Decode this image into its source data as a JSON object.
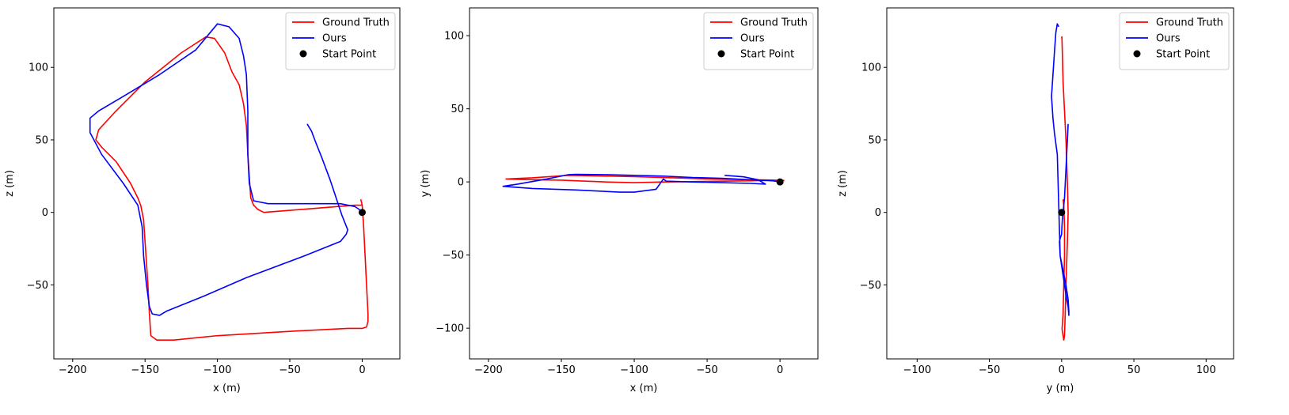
{
  "figure": {
    "background": "#ffffff"
  },
  "chart_data": [
    {
      "type": "line",
      "xlabel": "x (m)",
      "ylabel": "z (m)",
      "xlim": [
        -213,
        26
      ],
      "ylim": [
        -101,
        141
      ],
      "xticks": [
        -200,
        -150,
        -100,
        -50,
        0
      ],
      "yticks": [
        -50,
        0,
        50,
        100
      ],
      "xtick_labels": [
        "−200",
        "−150",
        "−100",
        "−50",
        "0"
      ],
      "ytick_labels": [
        "−50",
        "0",
        "50",
        "100"
      ],
      "grid": false,
      "legend_position": "top-right",
      "legend": [
        {
          "label": "Ground Truth",
          "kind": "line",
          "color": "#ff0000"
        },
        {
          "label": "Ours",
          "kind": "line",
          "color": "#0000ff"
        },
        {
          "label": "Start Point",
          "kind": "marker",
          "color": "#000000"
        }
      ],
      "series": [
        {
          "name": "Ground Truth",
          "color": "#ff0000",
          "x": [
            -1,
            0,
            1,
            2,
            3,
            4,
            4,
            3,
            0,
            -10,
            -50,
            -100,
            -130,
            -142,
            -146,
            -147,
            -148,
            -150,
            -151,
            -152,
            -153,
            -155,
            -160,
            -170,
            -180,
            -184,
            -182,
            -170,
            -150,
            -125,
            -108,
            -102,
            -95,
            -90,
            -85,
            -82,
            -80,
            -79,
            -78,
            -77,
            -75,
            -72,
            -68,
            -55,
            -30,
            -5,
            0
          ],
          "z": [
            9,
            5,
            -10,
            -30,
            -50,
            -70,
            -75,
            -79,
            -80,
            -80,
            -82,
            -85,
            -88,
            -88,
            -85,
            -70,
            -50,
            -20,
            -5,
            0,
            5,
            10,
            20,
            35,
            45,
            50,
            57,
            70,
            90,
            110,
            121,
            120,
            110,
            97,
            88,
            75,
            60,
            40,
            25,
            10,
            5,
            2,
            0,
            1,
            3,
            5,
            5
          ]
        },
        {
          "name": "Ours",
          "color": "#0000ff",
          "x": [
            -38,
            -35,
            -32,
            -28,
            -22,
            -18,
            -14,
            -12,
            -10,
            -11,
            -15,
            -40,
            -80,
            -110,
            -135,
            -140,
            -145,
            -147,
            -149,
            -151,
            -152,
            -155,
            -165,
            -180,
            -188,
            -188,
            -182,
            -165,
            -140,
            -115,
            -105,
            -100,
            -92,
            -85,
            -82,
            -80,
            -79,
            -79,
            -78,
            -75,
            -65,
            -40,
            -15,
            -5,
            -2,
            0
          ],
          "z": [
            61,
            56,
            48,
            38,
            22,
            10,
            -2,
            -7,
            -12,
            -15,
            -20,
            -30,
            -45,
            -58,
            -68,
            -71,
            -70,
            -65,
            -50,
            -30,
            -10,
            5,
            20,
            40,
            55,
            65,
            70,
            80,
            95,
            112,
            124,
            130,
            128,
            120,
            108,
            95,
            70,
            40,
            20,
            8,
            6,
            6,
            6,
            4,
            2,
            0
          ]
        },
        {
          "name": "Start Point",
          "color": "#000000",
          "marker": "circle",
          "x": [
            0
          ],
          "z": [
            0
          ]
        }
      ]
    },
    {
      "type": "line",
      "xlabel": "x (m)",
      "ylabel": "y (m)",
      "xlim": [
        -213,
        26
      ],
      "ylim": [
        -121,
        119
      ],
      "xticks": [
        -200,
        -150,
        -100,
        -50,
        0
      ],
      "yticks": [
        -100,
        -50,
        0,
        50,
        100
      ],
      "xtick_labels": [
        "−200",
        "−150",
        "−100",
        "−50",
        "0"
      ],
      "ytick_labels": [
        "−100",
        "−50",
        "0",
        "50",
        "100"
      ],
      "grid": false,
      "legend_position": "top-right",
      "legend": [
        {
          "label": "Ground Truth",
          "kind": "line",
          "color": "#ff0000"
        },
        {
          "label": "Ours",
          "kind": "line",
          "color": "#0000ff"
        },
        {
          "label": "Start Point",
          "kind": "marker",
          "color": "#000000"
        }
      ],
      "series": [
        {
          "name": "Ground Truth",
          "color": "#ff0000",
          "x": [
            3,
            -5,
            -20,
            -40,
            -60,
            -80,
            -100,
            -120,
            -145,
            -150,
            -160,
            -170,
            -188,
            -175,
            -150,
            -140,
            -120,
            -100,
            -80,
            -60,
            -40,
            -20,
            -10,
            0
          ],
          "y": [
            1,
            1.3,
            1.5,
            1.8,
            2.4,
            3,
            3.6,
            4,
            4.5,
            4.2,
            3.5,
            2.8,
            2,
            1.6,
            1.2,
            0.8,
            0,
            -0.5,
            0,
            0.2,
            0.5,
            0.8,
            1,
            1
          ]
        },
        {
          "name": "Ours",
          "color": "#0000ff",
          "x": [
            -38,
            -25,
            -15,
            -10,
            -20,
            -40,
            -60,
            -78,
            -80,
            -85,
            -100,
            -110,
            -140,
            -170,
            -190,
            -180,
            -160,
            -145,
            -140,
            -120,
            -100,
            -80,
            -60,
            -40,
            -20,
            -5,
            0
          ],
          "y": [
            4.5,
            3.5,
            1.5,
            -1.5,
            -1,
            -0.5,
            0,
            0.5,
            2,
            -5,
            -7,
            -7,
            -5.5,
            -4.5,
            -3,
            -1.5,
            2,
            5,
            5.2,
            5,
            4.5,
            4,
            3,
            2.5,
            1.5,
            0.8,
            0
          ]
        },
        {
          "name": "Start Point",
          "color": "#000000",
          "marker": "circle",
          "x": [
            0
          ],
          "y": [
            0
          ]
        }
      ]
    },
    {
      "type": "line",
      "xlabel": "y (m)",
      "ylabel": "z (m)",
      "xlim": [
        -121,
        119
      ],
      "ylim": [
        -101,
        141
      ],
      "xticks": [
        -100,
        -50,
        0,
        50,
        100
      ],
      "yticks": [
        -50,
        0,
        50,
        100
      ],
      "xtick_labels": [
        "−100",
        "−50",
        "0",
        "50",
        "100"
      ],
      "ytick_labels": [
        "−50",
        "0",
        "50",
        "100"
      ],
      "grid": false,
      "legend_position": "top-right",
      "legend": [
        {
          "label": "Ground Truth",
          "kind": "line",
          "color": "#ff0000"
        },
        {
          "label": "Ours",
          "kind": "line",
          "color": "#0000ff"
        },
        {
          "label": "Start Point",
          "kind": "marker",
          "color": "#000000"
        }
      ],
      "series": [
        {
          "name": "Ground Truth",
          "color": "#ff0000",
          "x": [
            1,
            1.5,
            2,
            2,
            1.5,
            1,
            0.5,
            0.3,
            0.5,
            1,
            1.5,
            2,
            2.5,
            3,
            4,
            4.5,
            4,
            3,
            2,
            1,
            0.5,
            0.2,
            0
          ],
          "z": [
            9,
            5,
            -10,
            -30,
            -50,
            -70,
            -78,
            -80,
            -82,
            -85,
            -88,
            -85,
            -70,
            -50,
            -20,
            0,
            20,
            50,
            70,
            90,
            110,
            121,
            120
          ]
        },
        {
          "name": "Ours",
          "color": "#0000ff",
          "x": [
            4.5,
            4,
            3.5,
            3,
            2.5,
            2,
            1.5,
            1,
            0.5,
            0.2,
            0,
            -1,
            -1.5,
            -1,
            0.5,
            2,
            3.5,
            4.5,
            5,
            5,
            4.5,
            3,
            1,
            -1,
            -3,
            -5,
            -6,
            -7,
            -6,
            -5,
            -4,
            -3,
            -2
          ],
          "z": [
            61,
            50,
            40,
            30,
            20,
            10,
            5,
            0,
            -5,
            -10,
            -15,
            -18,
            -20,
            -30,
            -40,
            -50,
            -60,
            -65,
            -71,
            -68,
            -60,
            -50,
            -40,
            -30,
            40,
            55,
            65,
            80,
            95,
            110,
            124,
            130,
            128
          ]
        },
        {
          "name": "Start Point",
          "color": "#000000",
          "marker": "circle",
          "x": [
            0
          ],
          "z": [
            0
          ]
        }
      ]
    }
  ]
}
